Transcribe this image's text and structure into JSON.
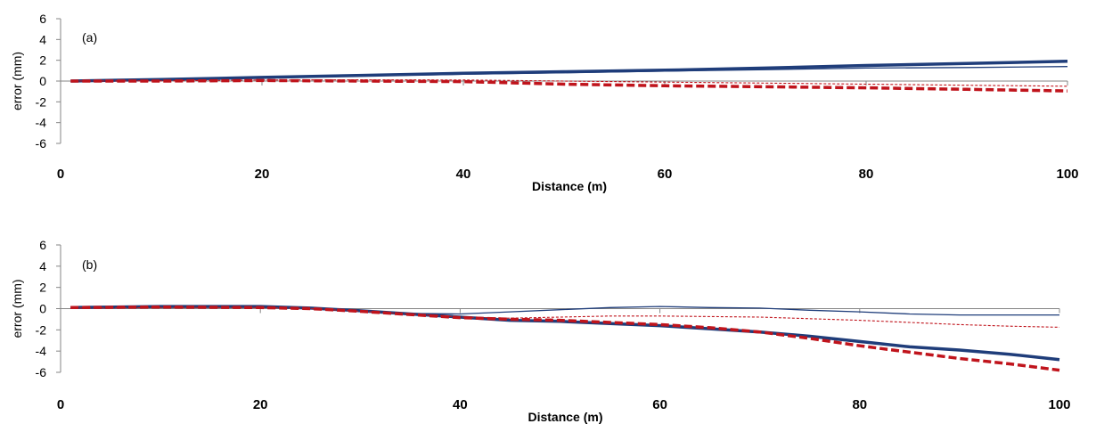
{
  "chart_data": [
    {
      "type": "line",
      "panel_label": "(a)",
      "xlabel": "Distance (m)",
      "ylabel": "error (mm)",
      "xlim": [
        0,
        100
      ],
      "ylim": [
        -6,
        6
      ],
      "x_ticks": [
        0,
        20,
        40,
        60,
        80,
        100
      ],
      "y_ticks": [
        -6,
        -4,
        -2,
        0,
        2,
        4,
        6
      ],
      "grid": false,
      "legend": "none",
      "series": [
        {
          "color": "#1f3d7a",
          "style": "solid-thick",
          "x": [
            1,
            10,
            20,
            30,
            40,
            50,
            60,
            70,
            80,
            90,
            100
          ],
          "y": [
            0,
            0.15,
            0.35,
            0.55,
            0.75,
            0.9,
            1.05,
            1.25,
            1.5,
            1.7,
            1.9
          ]
        },
        {
          "color": "#1f3d7a",
          "style": "solid-thin",
          "x": [
            1,
            10,
            20,
            30,
            40,
            50,
            60,
            70,
            80,
            90,
            100
          ],
          "y": [
            0,
            0.12,
            0.3,
            0.5,
            0.65,
            0.8,
            0.95,
            1.1,
            1.25,
            1.3,
            1.4
          ]
        },
        {
          "color": "#c0141c",
          "style": "dashed-thick",
          "x": [
            1,
            10,
            20,
            30,
            40,
            50,
            60,
            70,
            80,
            90,
            100
          ],
          "y": [
            0,
            0,
            0.05,
            0,
            -0.05,
            -0.3,
            -0.45,
            -0.55,
            -0.65,
            -0.8,
            -0.95
          ]
        },
        {
          "color": "#c0141c",
          "style": "dashed-thin",
          "x": [
            1,
            10,
            20,
            30,
            40,
            50,
            60,
            70,
            80,
            90,
            100
          ],
          "y": [
            0,
            0.02,
            0.1,
            0.12,
            0.1,
            0,
            -0.1,
            -0.2,
            -0.3,
            -0.4,
            -0.5
          ]
        }
      ]
    },
    {
      "type": "line",
      "panel_label": "(b)",
      "xlabel": "Distance (m)",
      "ylabel": "error (mm)",
      "xlim": [
        0,
        100
      ],
      "ylim": [
        -6,
        6
      ],
      "x_ticks": [
        0,
        20,
        40,
        60,
        80,
        100
      ],
      "y_ticks": [
        -6,
        -4,
        -2,
        0,
        2,
        4,
        6
      ],
      "grid": false,
      "legend": "none",
      "series": [
        {
          "color": "#1f3d7a",
          "style": "solid-thick",
          "x": [
            1,
            10,
            20,
            25,
            30,
            35,
            40,
            45,
            50,
            55,
            60,
            65,
            70,
            75,
            80,
            85,
            90,
            95,
            100
          ],
          "y": [
            0.1,
            0.2,
            0.2,
            0.05,
            -0.2,
            -0.5,
            -0.8,
            -1.1,
            -1.2,
            -1.4,
            -1.6,
            -1.9,
            -2.2,
            -2.6,
            -3.1,
            -3.6,
            -3.9,
            -4.3,
            -4.8
          ]
        },
        {
          "color": "#1f3d7a",
          "style": "solid-thin",
          "x": [
            1,
            10,
            20,
            25,
            30,
            35,
            40,
            45,
            50,
            55,
            60,
            65,
            70,
            75,
            80,
            85,
            90,
            95,
            100
          ],
          "y": [
            0.1,
            0.15,
            0.15,
            0.05,
            -0.2,
            -0.45,
            -0.5,
            -0.3,
            -0.1,
            0.1,
            0.2,
            0.1,
            0.05,
            -0.15,
            -0.3,
            -0.5,
            -0.6,
            -0.6,
            -0.6
          ]
        },
        {
          "color": "#c0141c",
          "style": "dashed-thick",
          "x": [
            1,
            10,
            20,
            25,
            30,
            35,
            40,
            45,
            50,
            55,
            60,
            65,
            70,
            75,
            80,
            85,
            90,
            95,
            100
          ],
          "y": [
            0.1,
            0.15,
            0.1,
            0,
            -0.25,
            -0.55,
            -0.85,
            -1.0,
            -1.1,
            -1.3,
            -1.5,
            -1.8,
            -2.2,
            -2.8,
            -3.5,
            -4.1,
            -4.7,
            -5.2,
            -5.8
          ]
        },
        {
          "color": "#c0141c",
          "style": "dashed-thin",
          "x": [
            1,
            10,
            20,
            25,
            30,
            35,
            40,
            45,
            50,
            55,
            60,
            65,
            70,
            75,
            80,
            85,
            90,
            95,
            100
          ],
          "y": [
            0.05,
            0.1,
            0.1,
            0,
            -0.25,
            -0.5,
            -0.8,
            -0.9,
            -0.8,
            -0.7,
            -0.7,
            -0.75,
            -0.8,
            -0.95,
            -1.1,
            -1.3,
            -1.5,
            -1.65,
            -1.75
          ]
        }
      ]
    }
  ]
}
